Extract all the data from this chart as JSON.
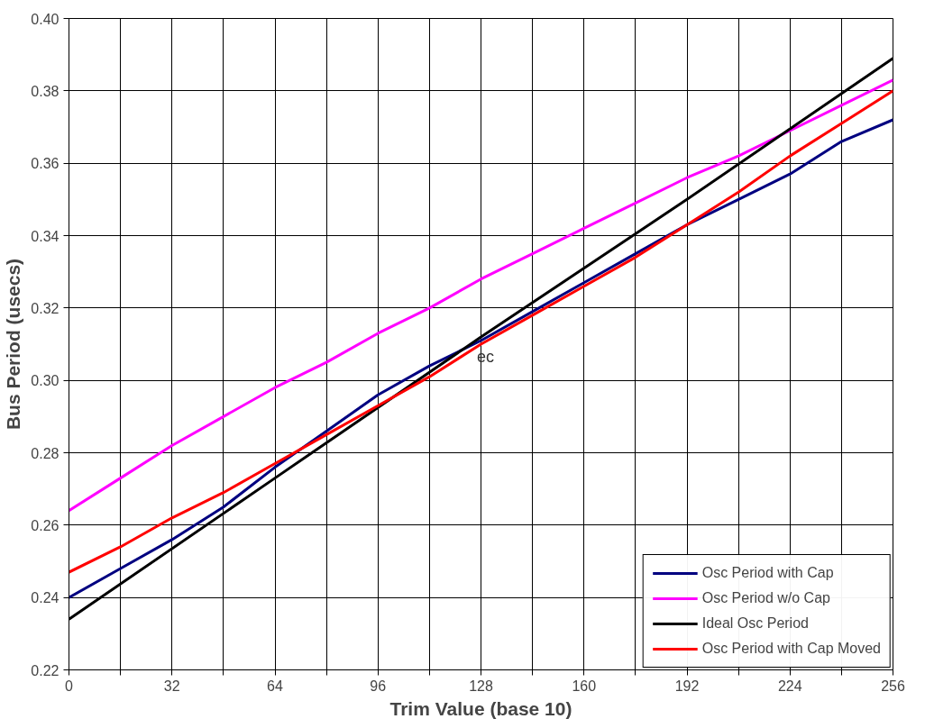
{
  "chart_data": {
    "type": "line",
    "xlabel": "Trim Value (base 10)",
    "ylabel": "Bus Period (usecs)",
    "x": [
      0,
      16,
      32,
      48,
      64,
      80,
      96,
      112,
      128,
      144,
      160,
      176,
      192,
      208,
      224,
      240,
      256
    ],
    "series": [
      {
        "name": "Osc Period with Cap",
        "color": "#000080",
        "values": [
          0.24,
          0.248,
          0.256,
          0.265,
          0.276,
          0.286,
          0.296,
          0.304,
          0.311,
          0.319,
          0.327,
          0.335,
          0.343,
          0.35,
          0.357,
          0.366,
          0.372
        ]
      },
      {
        "name": "Osc Period w/o Cap",
        "color": "#ff00ff",
        "values": [
          0.264,
          0.273,
          0.282,
          0.29,
          0.298,
          0.305,
          0.313,
          0.32,
          0.328,
          0.335,
          0.342,
          0.349,
          0.356,
          0.362,
          0.369,
          0.376,
          0.383
        ]
      },
      {
        "name": "Ideal Osc Period",
        "color": "#000000",
        "x": [
          0,
          64,
          128,
          192,
          256
        ],
        "values": [
          0.234,
          0.273,
          0.312,
          0.35,
          0.389
        ]
      },
      {
        "name": "Osc Period with Cap Moved",
        "color": "#ff0000",
        "values": [
          0.247,
          0.254,
          0.262,
          0.269,
          0.277,
          0.285,
          0.293,
          0.301,
          0.31,
          0.318,
          0.326,
          0.334,
          0.343,
          0.352,
          0.362,
          0.371,
          0.38
        ]
      }
    ],
    "xlim": [
      0,
      256
    ],
    "xticks": [
      0,
      {
        "value": 16,
        "label": null
      },
      32,
      {
        "value": 48,
        "label": null
      },
      64,
      {
        "value": 80,
        "label": null
      },
      96,
      {
        "value": 112,
        "label": null
      },
      128,
      {
        "value": 144,
        "label": null
      },
      160,
      {
        "value": 176,
        "label": null
      },
      192,
      {
        "value": 208,
        "label": null
      },
      224,
      {
        "value": 240,
        "label": null
      },
      256
    ],
    "ylim": [
      0.22,
      0.4
    ],
    "yticks": [
      {
        "value": 0.22,
        "label": "0.22"
      },
      {
        "value": 0.24,
        "label": "0.24"
      },
      {
        "value": 0.26,
        "label": "0.26"
      },
      {
        "value": 0.28,
        "label": "0.28"
      },
      {
        "value": 0.3,
        "label": "0.30"
      },
      {
        "value": 0.32,
        "label": "0.32"
      },
      {
        "value": 0.34,
        "label": "0.34"
      },
      {
        "value": 0.36,
        "label": "0.36"
      },
      {
        "value": 0.38,
        "label": "0.38"
      },
      {
        "value": 0.4,
        "label": "0.40"
      }
    ],
    "annotations": [
      "ec"
    ],
    "grid": true,
    "legend": "bottom right",
    "marker": "none",
    "line_style": "solid"
  }
}
